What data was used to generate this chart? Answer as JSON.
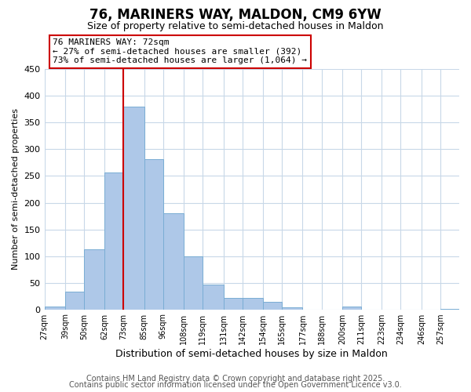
{
  "title": "76, MARINERS WAY, MALDON, CM9 6YW",
  "subtitle": "Size of property relative to semi-detached houses in Maldon",
  "xlabel": "Distribution of semi-detached houses by size in Maldon",
  "ylabel": "Number of semi-detached properties",
  "categories": [
    "27sqm",
    "39sqm",
    "50sqm",
    "62sqm",
    "73sqm",
    "85sqm",
    "96sqm",
    "108sqm",
    "119sqm",
    "131sqm",
    "142sqm",
    "154sqm",
    "165sqm",
    "177sqm",
    "188sqm",
    "200sqm",
    "211sqm",
    "223sqm",
    "234sqm",
    "246sqm",
    "257sqm"
  ],
  "bin_edges": [
    27,
    39,
    50,
    62,
    73,
    85,
    96,
    108,
    119,
    131,
    142,
    154,
    165,
    177,
    188,
    200,
    211,
    223,
    234,
    246,
    257
  ],
  "values": [
    5,
    33,
    113,
    257,
    380,
    282,
    180,
    100,
    47,
    21,
    21,
    14,
    4,
    0,
    0,
    6,
    0,
    0,
    0,
    0,
    1
  ],
  "bar_color": "#aec8e8",
  "bar_edge_color": "#7aadd4",
  "highlight_bin_index": 4,
  "highlight_line_color": "#cc0000",
  "annotation_line1": "76 MARINERS WAY: 72sqm",
  "annotation_line2": "← 27% of semi-detached houses are smaller (392)",
  "annotation_line3": "73% of semi-detached houses are larger (1,064) →",
  "annotation_box_color": "#ffffff",
  "annotation_box_edge_color": "#cc0000",
  "ylim": [
    0,
    450
  ],
  "yticks": [
    0,
    50,
    100,
    150,
    200,
    250,
    300,
    350,
    400,
    450
  ],
  "background_color": "#ffffff",
  "grid_color": "#c8d8e8",
  "footer_line1": "Contains HM Land Registry data © Crown copyright and database right 2025.",
  "footer_line2": "Contains public sector information licensed under the Open Government Licence v3.0.",
  "title_fontsize": 12,
  "subtitle_fontsize": 9,
  "annotation_fontsize": 8,
  "footer_fontsize": 7,
  "ylabel_fontsize": 8,
  "xlabel_fontsize": 9
}
